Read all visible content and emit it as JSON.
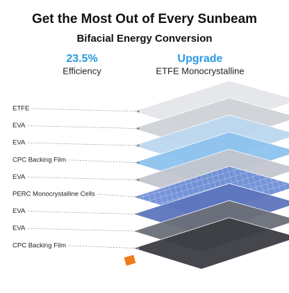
{
  "header": {
    "title": "Get the Most Out of Every Sunbeam",
    "subtitle": "Bifacial Energy Conversion"
  },
  "stats": [
    {
      "value": "23.5%",
      "label": "Efficiency"
    },
    {
      "value": "Upgrade",
      "label": "ETFE Monocrystalline"
    }
  ],
  "layers": [
    "ETFE",
    "EVA",
    "EVA",
    "CPC Backing Film",
    "EVA",
    "PERC Monocrystalline Cells",
    "EVA",
    "EVA",
    "CPC Backing Film"
  ]
}
